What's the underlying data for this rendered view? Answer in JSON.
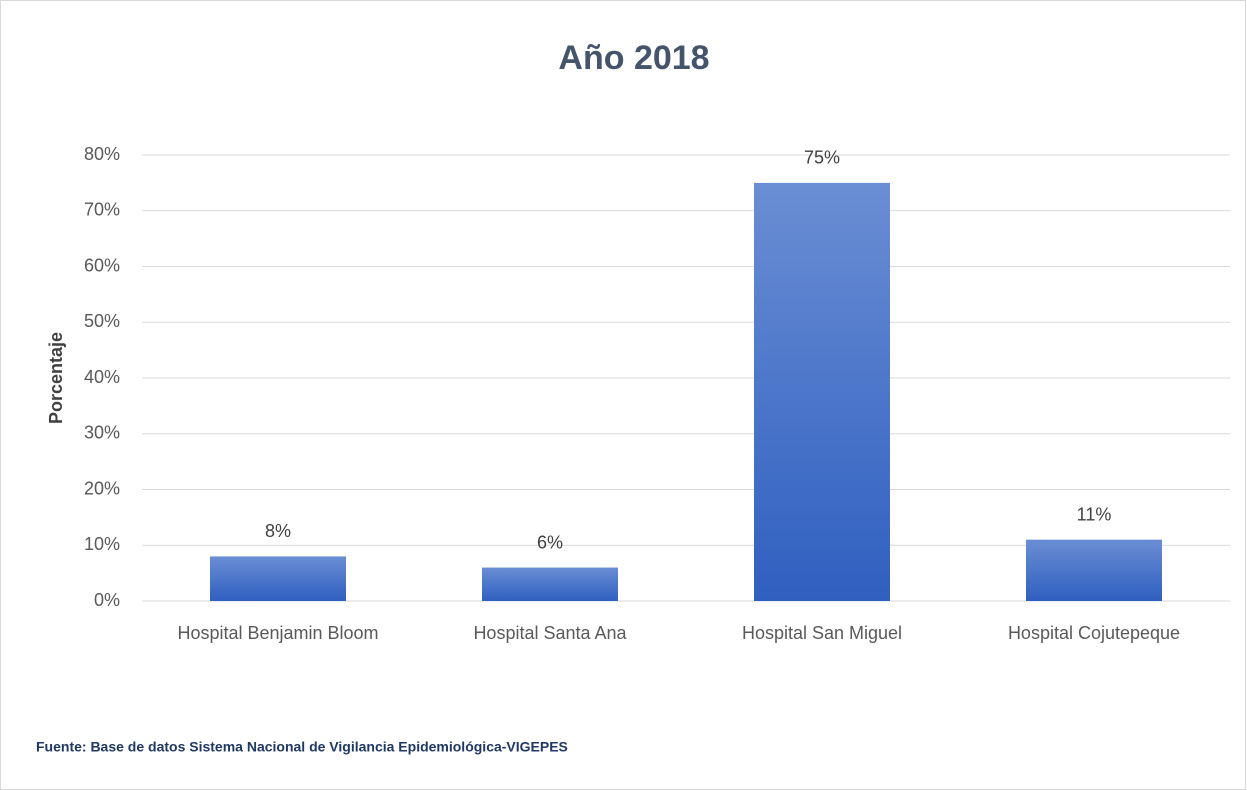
{
  "chart_data": {
    "type": "bar",
    "title": "Año 2018",
    "y_label": "Porcentaje",
    "categories": [
      "Hospital Benjamin Bloom",
      "Hospital Santa Ana",
      "Hospital San Miguel",
      "Hospital Cojutepeque"
    ],
    "values": [
      8,
      6,
      75,
      11
    ],
    "value_labels": [
      "8%",
      "6%",
      "75%",
      "11%"
    ],
    "color": "#4472c4",
    "ylim": [
      0,
      80
    ],
    "yticks": [
      {
        "value": 0,
        "label": "0%"
      },
      {
        "value": 10,
        "label": "10%"
      },
      {
        "value": 20,
        "label": "20%"
      },
      {
        "value": 30,
        "label": "30%"
      },
      {
        "value": 40,
        "label": "40%"
      },
      {
        "value": 50,
        "label": "50%"
      },
      {
        "value": 60,
        "label": "60%"
      },
      {
        "value": 70,
        "label": "70%"
      },
      {
        "value": 80,
        "label": "80%"
      }
    ],
    "grid": true,
    "source": "Fuente: Base de datos Sistema Nacional de Vigilancia Epidemiológica-VIGEPES"
  }
}
